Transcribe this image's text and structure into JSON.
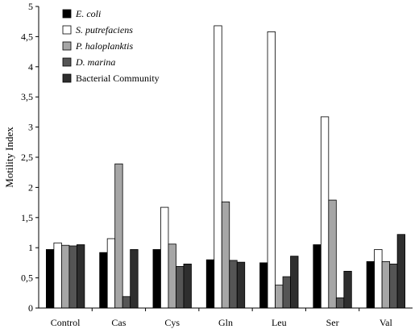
{
  "chart_data": {
    "type": "bar",
    "title": "",
    "xlabel": "",
    "ylabel": "Motility Index",
    "ylim": [
      0,
      5
    ],
    "yticks": [
      "0",
      "0,5",
      "1",
      "1,5",
      "2",
      "2,5",
      "3",
      "3,5",
      "4",
      "4,5",
      "5"
    ],
    "grid": false,
    "legend_position": "top-left",
    "categories": [
      "Control",
      "Cas",
      "Cys",
      "Gln",
      "Leu",
      "Ser",
      "Val"
    ],
    "series": [
      {
        "name": "E. coli",
        "italic": true,
        "color": "#000000",
        "values": [
          0.97,
          0.92,
          0.97,
          0.8,
          0.75,
          1.05,
          0.77
        ]
      },
      {
        "name": "S. putrefaciens",
        "italic": true,
        "color": "#ffffff",
        "values": [
          1.08,
          1.15,
          1.67,
          4.68,
          4.58,
          3.17,
          0.97
        ]
      },
      {
        "name": "P. haloplanktis",
        "italic": true,
        "color": "#a6a6a6",
        "values": [
          1.04,
          2.39,
          1.06,
          1.76,
          0.38,
          1.79,
          0.77
        ]
      },
      {
        "name": "D. marina",
        "italic": true,
        "color": "#555555",
        "values": [
          1.03,
          0.19,
          0.69,
          0.79,
          0.52,
          0.17,
          0.73
        ]
      },
      {
        "name": "Bacterial Community",
        "italic": false,
        "color": "#2e2e2e",
        "values": [
          1.05,
          0.97,
          0.73,
          0.76,
          0.86,
          0.61,
          1.22
        ]
      }
    ]
  }
}
